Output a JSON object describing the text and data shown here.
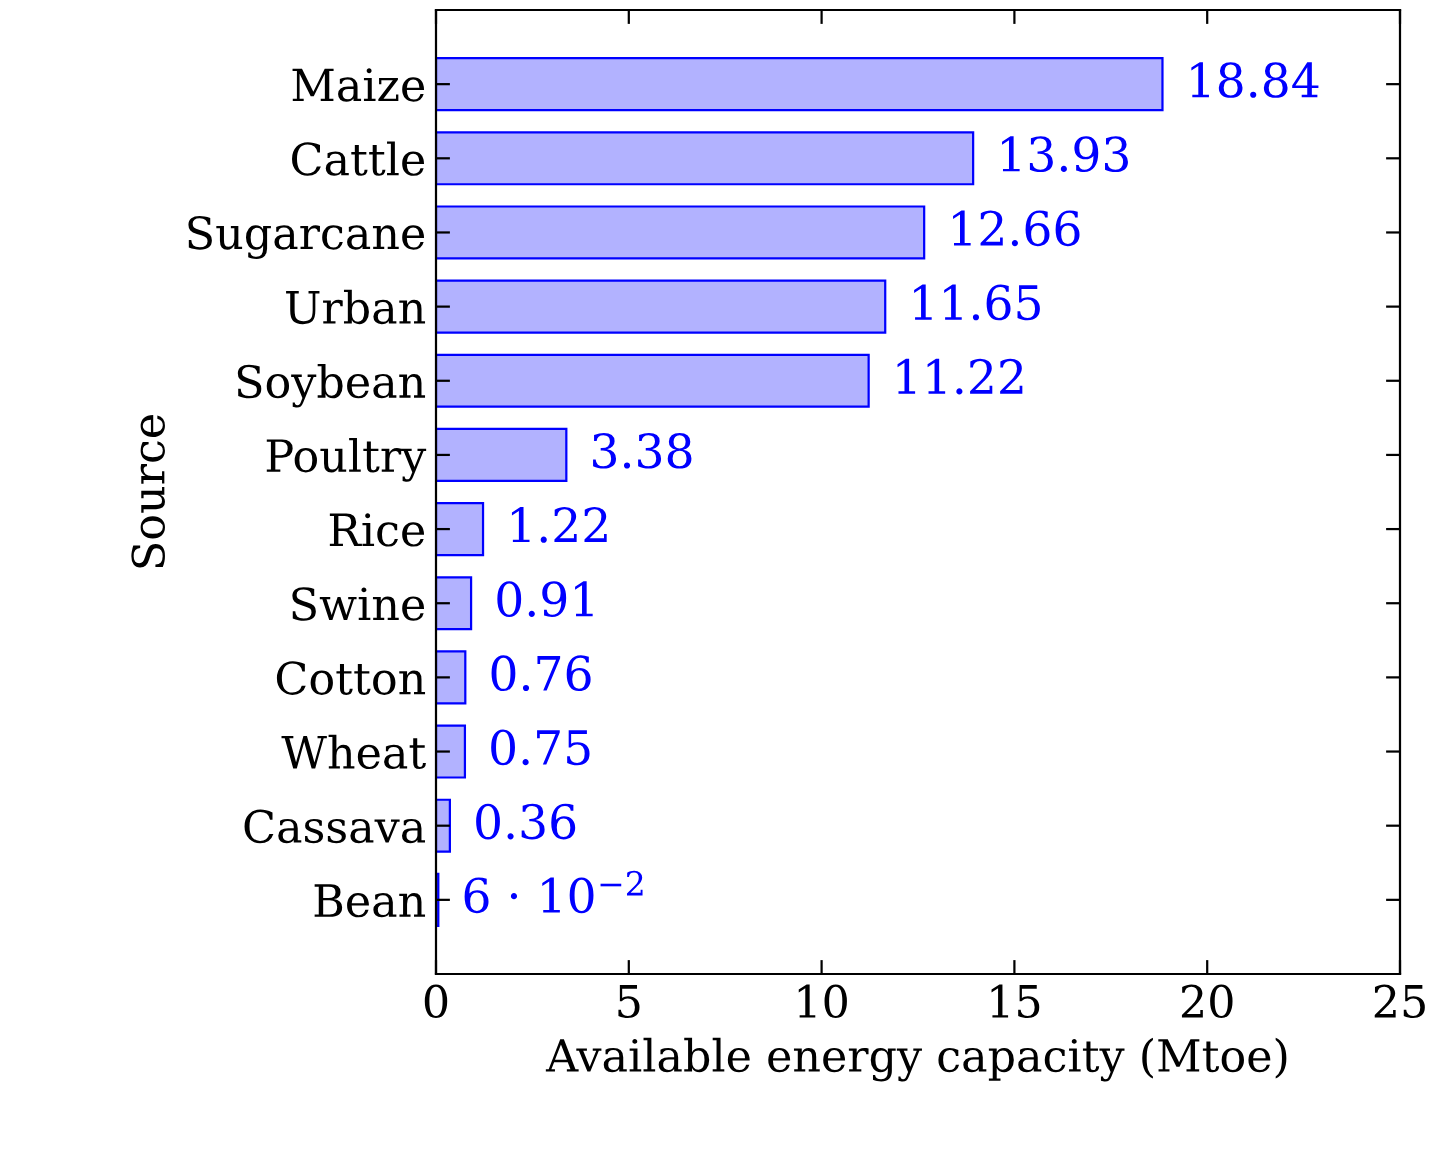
{
  "chart_data": {
    "type": "bar",
    "orientation": "horizontal",
    "xlabel": "Available energy capacity (Mtoe)",
    "ylabel": "Source",
    "categories": [
      "Maize",
      "Cattle",
      "Sugarcane",
      "Urban",
      "Soybean",
      "Poultry",
      "Rice",
      "Swine",
      "Cotton",
      "Wheat",
      "Cassava",
      "Bean"
    ],
    "values": [
      18.84,
      13.93,
      12.66,
      11.65,
      11.22,
      3.38,
      1.22,
      0.91,
      0.76,
      0.75,
      0.36,
      0.06
    ],
    "value_labels": [
      "18.84",
      "13.93",
      "12.66",
      "11.65",
      "11.22",
      "3.38",
      "1.22",
      "0.91",
      "0.76",
      "0.75",
      "0.36",
      "6 · 10$^{−2}$"
    ],
    "color": "#0000ff",
    "xlim": [
      0,
      25
    ],
    "xticks": [
      0,
      5,
      10,
      15,
      20,
      25
    ],
    "grid": false
  }
}
